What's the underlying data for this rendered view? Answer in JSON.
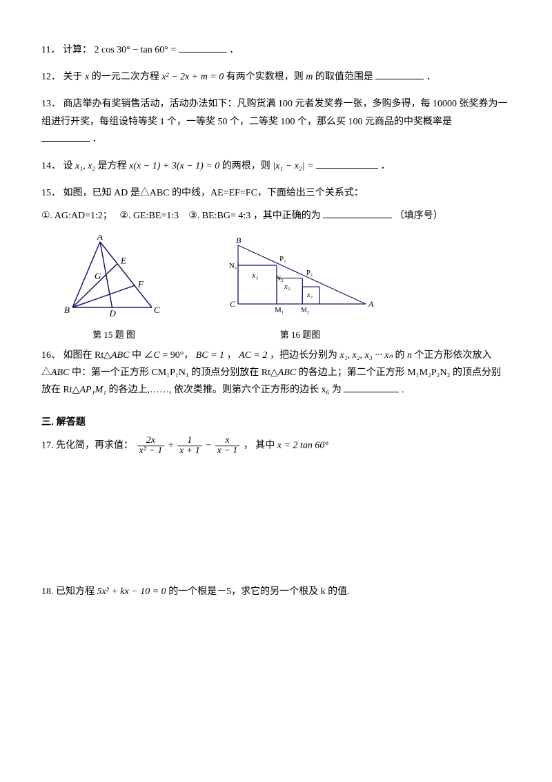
{
  "q11": {
    "num": "11．",
    "prefix": "计算：",
    "expr": "2 cos 30° − tan 60° =",
    "suffix": "．"
  },
  "q12": {
    "num": "12．",
    "prefix": "关于 ",
    "var_x": "x",
    "mid1": " 的一元二次方程 ",
    "eq": "x² − 2x + m = 0",
    "mid2": " 有两个实数根，则 ",
    "var_m": "m",
    "mid3": " 的取值范围是",
    "suffix": "．"
  },
  "q13": {
    "num": "13．",
    "text": " 商店举办有奖销售活动，活动办法如下：凡购货满 100 元者发奖券一张，多购多得，每 10000 张奖券为一组进行开奖，每组设特等奖 1 个，一等奖 50 个，二等奖 100 个，那么买 100 元商品的中奖概率是",
    "suffix": "．"
  },
  "q14": {
    "num": "14．",
    "prefix": "设 ",
    "vars": "x₁, x₂",
    "mid1": " 是方程 ",
    "eq": "x(x − 1) + 3(x − 1) = 0",
    "mid2": " 的两根，则 ",
    "abs": "|x₁ − x₂| =",
    "suffix": "  ．"
  },
  "q15": {
    "num": "15．",
    "line1a": "如图，已知 AD 是△ABC 的中线，AE=EF=FC，下面给出三个关系式：",
    "opt1": "①. AG:AD=1:2；",
    "opt2": "②. GE:BE=1:3",
    "opt3": "③. BE:BG= 4:3",
    "mid": "，其中正确的为 ",
    "suffix": "（填序号）"
  },
  "fig15": {
    "caption": "第 15 题  图",
    "labels": {
      "A": "A",
      "B": "B",
      "C": "C",
      "D": "D",
      "E": "E",
      "F": "F",
      "G": "G"
    },
    "stroke": "#16166f",
    "font": "italic 13px Times New Roman"
  },
  "fig16": {
    "caption": "第 16 题图",
    "labels": {
      "A": "A",
      "B": "B",
      "C": "C",
      "N1": "N₁",
      "N2": "N₂",
      "P1": "P₁",
      "P2": "P₂",
      "M1": "M₁",
      "M2": "M₂",
      "x1": "x₁",
      "x2": "x₂",
      "x3": "x₃"
    },
    "stroke": "#16166f",
    "font": "italic 12px Times New Roman"
  },
  "q16": {
    "num": "16、",
    "p1a": "如图在 Rt△",
    "abc": "ABC",
    "p1b": " 中 ∠",
    "C": "C",
    "eq90": " = 90°，",
    "bc": "BC = 1",
    "sep0": "，",
    "ac": "AC = 2",
    "p1c": "，把边长分别为 ",
    "xs": "x₁, x₂, x₃ ··· xₙ",
    "p1d": " 的 ",
    "n": "n",
    "p1e": " 个正方形依次放入△",
    "abc2": "ABC",
    "p2a": " 中：第一个正方形 CM₁P₁N₁ 的顶点分别放在 Rt△",
    "abc3": "ABC",
    "p2b": " 的各边上；第二个正方形 M₁M₂P₂N₂ 的顶点分别放在 Rt△",
    "apm": "AP₁M₁",
    "p2c": " 的各边上,……, 依次类推。则第六个正方形的边长 x₆ 为",
    "suffix": "."
  },
  "sec3": "三. 解答题",
  "q17": {
    "num": "17.",
    "prefix": " 先化简，再求值：",
    "f1n": "2x",
    "f1d": "x² − 1",
    "div": " ÷ ",
    "f2n": "1",
    "f2d": "x + 1",
    "minus": " − ",
    "f3n": "x",
    "f3d": "x − 1",
    "mid": "， 其中 ",
    "xeq": "x = 2 tan 60°"
  },
  "q18": {
    "num": "18.",
    "prefix": " 已知方程 ",
    "eq": "5x² + kx − 10 = 0",
    "suffix": " 的一个根是－5，求它的另一个根及 k 的值."
  }
}
